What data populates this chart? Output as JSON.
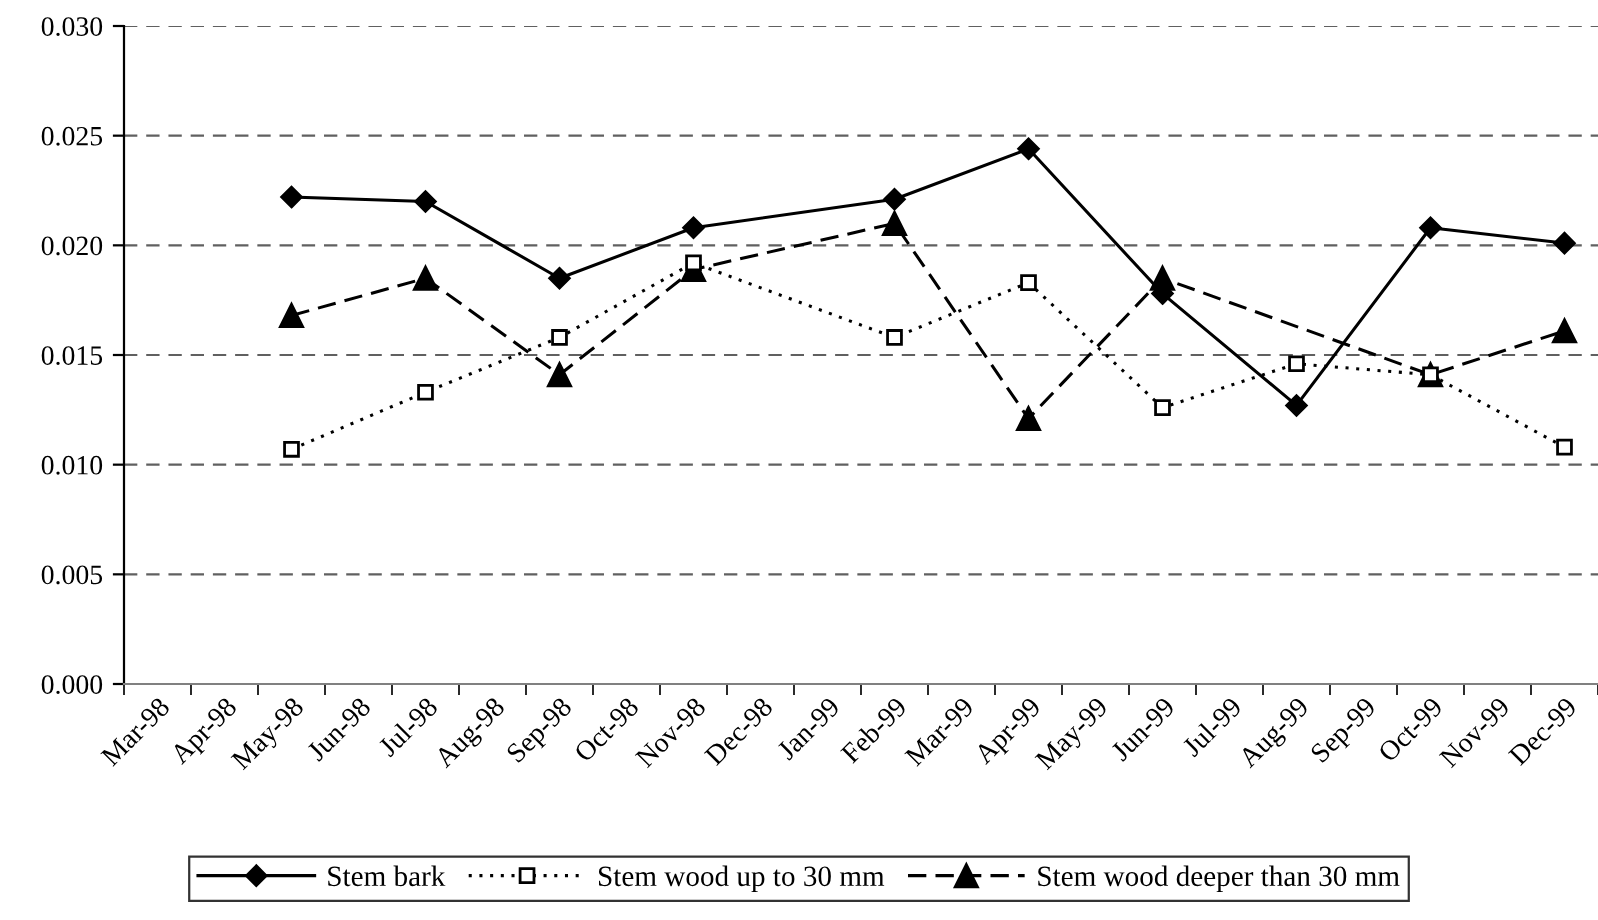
{
  "chart_data": {
    "type": "line",
    "categories": [
      "Mar-98",
      "Apr-98",
      "May-98",
      "Jun-98",
      "Jul-98",
      "Aug-98",
      "Sep-98",
      "Oct-98",
      "Nov-98",
      "Dec-98",
      "Jan-99",
      "Feb-99",
      "Mar-99",
      "Apr-99",
      "May-99",
      "Jun-99",
      "Jul-99",
      "Aug-99",
      "Sep-99",
      "Oct-99",
      "Nov-99",
      "Dec-99"
    ],
    "series": [
      {
        "name": "Stem bark",
        "color": "#000000",
        "marker": "diamond",
        "line_style": "solid",
        "values": [
          null,
          null,
          0.0222,
          null,
          0.022,
          null,
          0.0185,
          null,
          0.0208,
          null,
          null,
          0.0221,
          null,
          0.0244,
          null,
          0.0178,
          null,
          0.0127,
          null,
          0.0208,
          null,
          0.0201
        ]
      },
      {
        "name": "Stem wood up to 30 mm",
        "color": "#000000",
        "marker": "square",
        "line_style": "dotted",
        "values": [
          null,
          null,
          0.0107,
          null,
          0.0133,
          null,
          0.0158,
          null,
          0.0192,
          null,
          null,
          0.0158,
          null,
          0.0183,
          null,
          0.0126,
          null,
          0.0146,
          null,
          0.0141,
          null,
          0.0108
        ]
      },
      {
        "name": "Stem wood deeper than 30 mm",
        "color": "#000000",
        "marker": "triangle",
        "line_style": "dashed",
        "values": [
          null,
          null,
          0.0168,
          null,
          0.0185,
          null,
          0.0141,
          null,
          0.0189,
          null,
          null,
          0.021,
          null,
          0.0121,
          null,
          0.0185,
          null,
          null,
          null,
          0.0141,
          null,
          0.0161
        ]
      }
    ],
    "ylim": [
      0,
      0.03
    ],
    "yticks": [
      {
        "value": 0,
        "label": "0.000"
      },
      {
        "value": 0.005,
        "label": "0.005"
      },
      {
        "value": 0.01,
        "label": "0.010"
      },
      {
        "value": 0.015,
        "label": "0.015"
      },
      {
        "value": 0.02,
        "label": "0.020"
      },
      {
        "value": 0.025,
        "label": "0.025"
      },
      {
        "value": 0.03,
        "label": "0.030"
      }
    ],
    "grid": "y",
    "legend": "bottom"
  }
}
